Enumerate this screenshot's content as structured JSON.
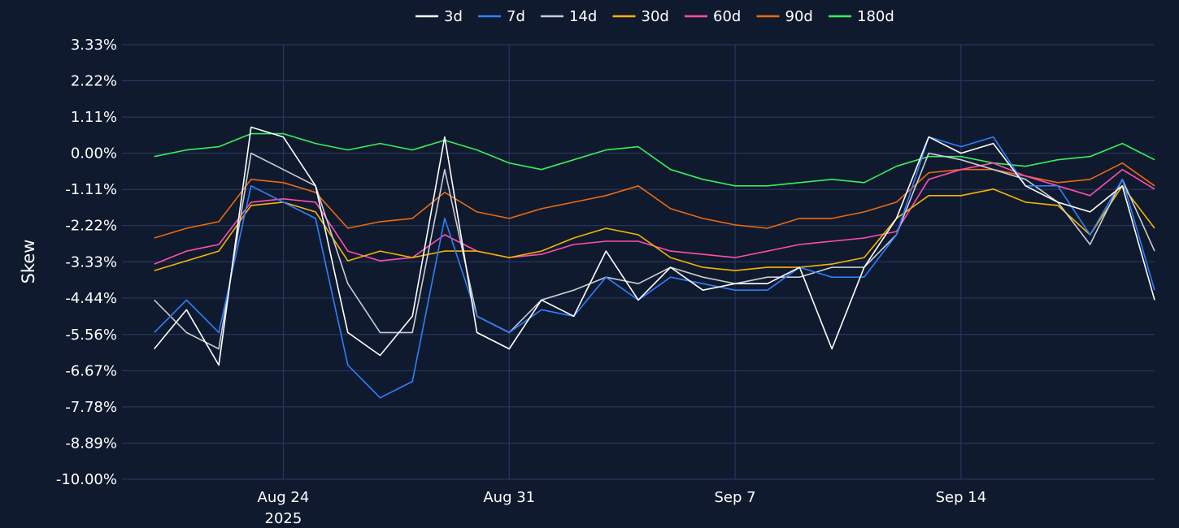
{
  "chart_data": {
    "type": "line",
    "title": "",
    "xlabel": "",
    "ylabel": "Skew",
    "y_unit": "%",
    "ylim": [
      -10.0,
      3.33
    ],
    "y_ticks": [
      3.33,
      2.22,
      1.11,
      0.0,
      -1.11,
      -2.22,
      -3.33,
      -4.44,
      -5.56,
      -6.67,
      -7.78,
      -8.89,
      -10.0
    ],
    "y_tick_labels": [
      "3.33%",
      "2.22%",
      "1.11%",
      "0.00%",
      "-1.11%",
      "-2.22%",
      "-3.33%",
      "-4.44%",
      "-5.56%",
      "-6.67%",
      "-7.78%",
      "-8.89%",
      "-10.00%"
    ],
    "xlim": [
      "2025-08-19",
      "2025-09-20"
    ],
    "x_ticks": [
      {
        "date": "2025-08-24",
        "label": "Aug 24",
        "sublabel": "2025"
      },
      {
        "date": "2025-08-31",
        "label": "Aug 31",
        "sublabel": ""
      },
      {
        "date": "2025-09-07",
        "label": "Sep 7",
        "sublabel": ""
      },
      {
        "date": "2025-09-14",
        "label": "Sep 14",
        "sublabel": ""
      }
    ],
    "grid": true,
    "legend_position": "top-center",
    "x": [
      "2025-08-20",
      "2025-08-21",
      "2025-08-22",
      "2025-08-23",
      "2025-08-24",
      "2025-08-25",
      "2025-08-26",
      "2025-08-27",
      "2025-08-28",
      "2025-08-29",
      "2025-08-30",
      "2025-08-31",
      "2025-09-01",
      "2025-09-02",
      "2025-09-03",
      "2025-09-04",
      "2025-09-05",
      "2025-09-06",
      "2025-09-07",
      "2025-09-08",
      "2025-09-09",
      "2025-09-10",
      "2025-09-11",
      "2025-09-12",
      "2025-09-13",
      "2025-09-14",
      "2025-09-15",
      "2025-09-16",
      "2025-09-17",
      "2025-09-18",
      "2025-09-19",
      "2025-09-20"
    ],
    "series": [
      {
        "name": "3d",
        "color": "#ffffff",
        "values": [
          -6.0,
          -4.8,
          -6.5,
          0.8,
          0.5,
          -1.0,
          -5.5,
          -6.2,
          -5.0,
          0.5,
          -5.5,
          -6.0,
          -4.5,
          -5.0,
          -3.0,
          -4.5,
          -3.5,
          -4.2,
          -4.0,
          -4.0,
          -3.5,
          -6.0,
          -3.5,
          -2.0,
          0.5,
          0.0,
          0.3,
          -1.0,
          -1.5,
          -1.8,
          -1.0,
          -4.5
        ]
      },
      {
        "name": "7d",
        "color": "#2f7fff",
        "values": [
          -5.5,
          -4.5,
          -5.5,
          -1.0,
          -1.5,
          -2.0,
          -6.5,
          -7.5,
          -7.0,
          -2.0,
          -5.0,
          -5.5,
          -4.8,
          -5.0,
          -3.8,
          -4.5,
          -3.8,
          -4.0,
          -4.2,
          -4.2,
          -3.5,
          -3.8,
          -3.8,
          -2.5,
          0.5,
          0.2,
          0.5,
          -1.0,
          -1.0,
          -2.5,
          -0.8,
          -4.2
        ]
      },
      {
        "name": "14d",
        "color": "#c8ccd4",
        "values": [
          -4.5,
          -5.5,
          -6.0,
          0.0,
          -0.5,
          -1.0,
          -4.0,
          -5.5,
          -5.5,
          -0.5,
          -5.0,
          -5.5,
          -4.5,
          -4.2,
          -3.8,
          -4.0,
          -3.5,
          -3.8,
          -4.0,
          -3.8,
          -3.8,
          -3.5,
          -3.5,
          -2.5,
          0.0,
          -0.2,
          -0.5,
          -0.8,
          -1.5,
          -2.8,
          -0.8,
          -3.0
        ]
      },
      {
        "name": "30d",
        "color": "#f4b400",
        "values": [
          -3.6,
          -3.3,
          -3.0,
          -1.6,
          -1.5,
          -1.8,
          -3.3,
          -3.0,
          -3.2,
          -3.0,
          -3.0,
          -3.2,
          -3.0,
          -2.6,
          -2.3,
          -2.5,
          -3.2,
          -3.5,
          -3.6,
          -3.5,
          -3.5,
          -3.4,
          -3.2,
          -2.0,
          -1.3,
          -1.3,
          -1.1,
          -1.5,
          -1.6,
          -2.5,
          -1.0,
          -2.3
        ]
      },
      {
        "name": "60d",
        "color": "#ff4fae",
        "values": [
          -3.4,
          -3.0,
          -2.8,
          -1.5,
          -1.4,
          -1.5,
          -3.0,
          -3.3,
          -3.2,
          -2.5,
          -3.0,
          -3.2,
          -3.1,
          -2.8,
          -2.7,
          -2.7,
          -3.0,
          -3.1,
          -3.2,
          -3.0,
          -2.8,
          -2.7,
          -2.6,
          -2.4,
          -0.8,
          -0.5,
          -0.3,
          -0.7,
          -1.0,
          -1.3,
          -0.5,
          -1.1
        ]
      },
      {
        "name": "90d",
        "color": "#ea6a0f",
        "values": [
          -2.6,
          -2.3,
          -2.1,
          -0.8,
          -0.9,
          -1.2,
          -2.3,
          -2.1,
          -2.0,
          -1.2,
          -1.8,
          -2.0,
          -1.7,
          -1.5,
          -1.3,
          -1.0,
          -1.7,
          -2.0,
          -2.2,
          -2.3,
          -2.0,
          -2.0,
          -1.8,
          -1.5,
          -0.6,
          -0.5,
          -0.5,
          -0.7,
          -0.9,
          -0.8,
          -0.3,
          -1.0
        ]
      },
      {
        "name": "180d",
        "color": "#39ee5a",
        "values": [
          -0.1,
          0.1,
          0.2,
          0.6,
          0.6,
          0.3,
          0.1,
          0.3,
          0.1,
          0.4,
          0.1,
          -0.3,
          -0.5,
          -0.2,
          0.1,
          0.2,
          -0.5,
          -0.8,
          -1.0,
          -1.0,
          -0.9,
          -0.8,
          -0.9,
          -0.4,
          -0.1,
          -0.1,
          -0.3,
          -0.4,
          -0.2,
          -0.1,
          0.3,
          -0.2
        ]
      }
    ]
  }
}
